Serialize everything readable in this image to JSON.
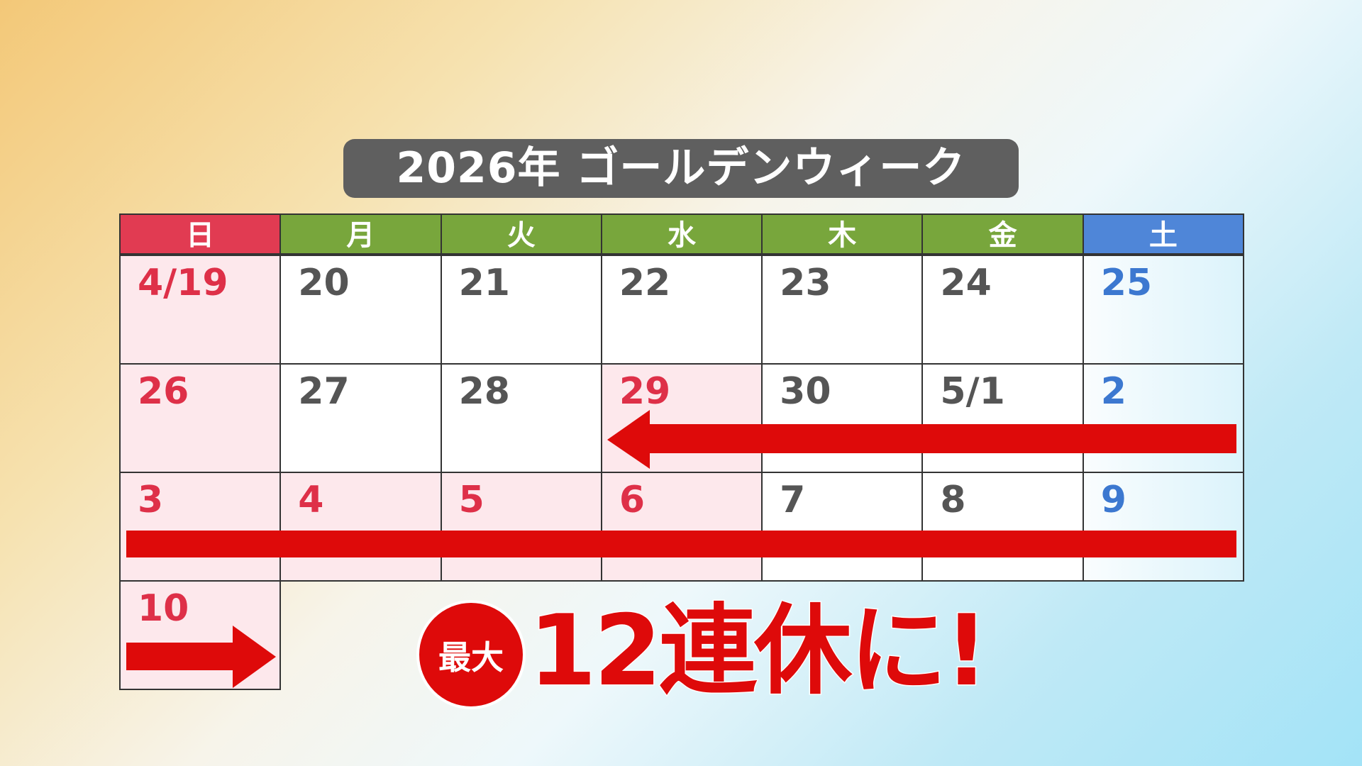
{
  "title": "2026年 ゴールデンウィーク",
  "colors": {
    "sunday": "#e13b52",
    "weekday": "#78a63c",
    "saturday": "#4f86d8",
    "arrow": "#de0a0a"
  },
  "weekdays": [
    "日",
    "月",
    "火",
    "水",
    "木",
    "金",
    "土"
  ],
  "weeks": [
    [
      {
        "d": "4/19",
        "t": "holiday"
      },
      {
        "d": "20",
        "t": "weekday"
      },
      {
        "d": "21",
        "t": "weekday"
      },
      {
        "d": "22",
        "t": "weekday"
      },
      {
        "d": "23",
        "t": "weekday"
      },
      {
        "d": "24",
        "t": "weekday"
      },
      {
        "d": "25",
        "t": "sat"
      }
    ],
    [
      {
        "d": "26",
        "t": "holiday"
      },
      {
        "d": "27",
        "t": "weekday"
      },
      {
        "d": "28",
        "t": "weekday"
      },
      {
        "d": "29",
        "t": "holiday"
      },
      {
        "d": "30",
        "t": "weekday"
      },
      {
        "d": "5/1",
        "t": "weekday"
      },
      {
        "d": "2",
        "t": "sat"
      }
    ],
    [
      {
        "d": "3",
        "t": "holiday"
      },
      {
        "d": "4",
        "t": "holiday"
      },
      {
        "d": "5",
        "t": "holiday"
      },
      {
        "d": "6",
        "t": "holiday"
      },
      {
        "d": "7",
        "t": "weekday"
      },
      {
        "d": "8",
        "t": "weekday"
      },
      {
        "d": "9",
        "t": "sat"
      }
    ],
    [
      {
        "d": "10",
        "t": "holiday"
      }
    ]
  ],
  "badge": "最大",
  "headline": "12連休に!"
}
